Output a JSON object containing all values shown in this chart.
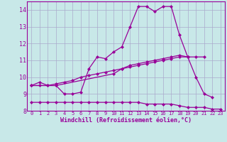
{
  "background_color": "#c8e8e8",
  "grid_color": "#aaaacc",
  "line_color": "#990099",
  "marker": "D",
  "markersize": 2,
  "linewidth": 0.9,
  "xlim": [
    -0.5,
    23.5
  ],
  "ylim": [
    8.0,
    14.5
  ],
  "yticks": [
    8,
    9,
    10,
    11,
    12,
    13,
    14
  ],
  "xticks": [
    0,
    1,
    2,
    3,
    4,
    5,
    6,
    7,
    8,
    9,
    10,
    11,
    12,
    13,
    14,
    15,
    16,
    17,
    18,
    19,
    20,
    21,
    22,
    23
  ],
  "xlabel": "Windchill (Refroidissement éolien,°C)",
  "series": [
    [
      9.5,
      9.7,
      9.5,
      9.5,
      9.0,
      9.0,
      9.1,
      10.5,
      11.2,
      11.1,
      11.5,
      11.8,
      13.0,
      14.2,
      14.2,
      13.9,
      14.2,
      14.2,
      12.5,
      11.2,
      10.0,
      9.0,
      8.8,
      null
    ],
    [
      9.5,
      null,
      null,
      9.5,
      null,
      null,
      null,
      null,
      null,
      null,
      10.2,
      10.5,
      10.7,
      10.8,
      10.9,
      11.0,
      11.1,
      11.2,
      11.3,
      11.2,
      11.2,
      11.2,
      null,
      null
    ],
    [
      8.5,
      8.5,
      8.5,
      8.5,
      8.5,
      8.5,
      8.5,
      8.5,
      8.5,
      8.5,
      8.5,
      8.5,
      8.5,
      8.5,
      8.4,
      8.4,
      8.4,
      8.4,
      8.3,
      8.2,
      8.2,
      8.2,
      8.1,
      8.1
    ],
    [
      9.5,
      9.5,
      9.5,
      9.6,
      9.7,
      9.8,
      10.0,
      10.1,
      10.2,
      10.3,
      10.4,
      10.5,
      10.6,
      10.7,
      10.8,
      10.9,
      11.0,
      11.1,
      11.2,
      11.2,
      null,
      null,
      null,
      null
    ]
  ]
}
